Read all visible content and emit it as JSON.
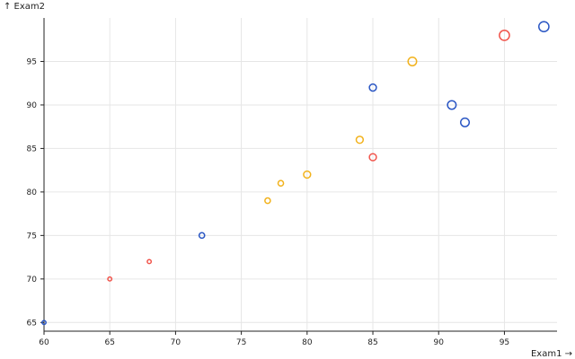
{
  "chart_data": {
    "type": "scatter",
    "title": "",
    "xlabel": "Exam1 →",
    "ylabel": "↑ Exam2",
    "xlim": [
      60,
      99
    ],
    "ylim": [
      64,
      100
    ],
    "xticks": [
      60,
      65,
      70,
      75,
      80,
      85,
      90,
      95
    ],
    "yticks": [
      65,
      70,
      75,
      80,
      85,
      90,
      95
    ],
    "grid": true,
    "colors": [
      "#2b57c4",
      "#f1544b",
      "#f2b21c"
    ],
    "points": [
      {
        "x": 60,
        "y": 65,
        "size": 1,
        "color": "#2b57c4"
      },
      {
        "x": 65,
        "y": 70,
        "size": 1,
        "color": "#f1544b"
      },
      {
        "x": 68,
        "y": 72,
        "size": 1,
        "color": "#f1544b"
      },
      {
        "x": 72,
        "y": 75,
        "size": 2,
        "color": "#2b57c4"
      },
      {
        "x": 77,
        "y": 79,
        "size": 2,
        "color": "#f2b21c"
      },
      {
        "x": 78,
        "y": 81,
        "size": 2,
        "color": "#f2b21c"
      },
      {
        "x": 80,
        "y": 82,
        "size": 3,
        "color": "#f2b21c"
      },
      {
        "x": 84,
        "y": 86,
        "size": 3,
        "color": "#f2b21c"
      },
      {
        "x": 85,
        "y": 84,
        "size": 3,
        "color": "#f1544b"
      },
      {
        "x": 85,
        "y": 92,
        "size": 3,
        "color": "#2b57c4"
      },
      {
        "x": 88,
        "y": 95,
        "size": 4,
        "color": "#f2b21c"
      },
      {
        "x": 91,
        "y": 90,
        "size": 4,
        "color": "#2b57c4"
      },
      {
        "x": 92,
        "y": 88,
        "size": 4,
        "color": "#2b57c4"
      },
      {
        "x": 95,
        "y": 98,
        "size": 5,
        "color": "#f1544b"
      },
      {
        "x": 98,
        "y": 99,
        "size": 5,
        "color": "#2b57c4"
      }
    ]
  }
}
